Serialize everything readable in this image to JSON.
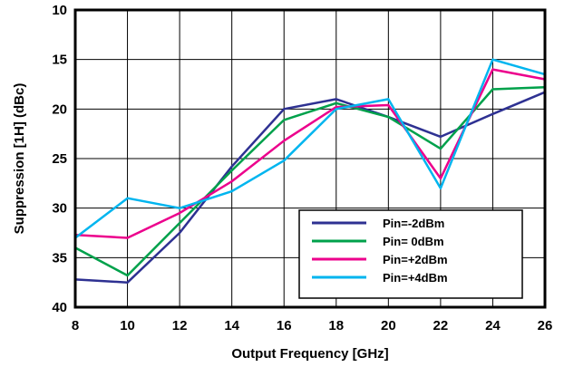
{
  "chart_data": {
    "type": "line",
    "title": "",
    "xlabel": "Output Frequency [GHz]",
    "ylabel": "Suppression [1H] (dBc)",
    "xlim": [
      8,
      26
    ],
    "ylim": [
      10,
      40
    ],
    "y_inverted": true,
    "grid": true,
    "legend_position": "bottom-right",
    "x_ticks": [
      "8",
      "10",
      "12",
      "14",
      "16",
      "18",
      "20",
      "22",
      "24",
      "26"
    ],
    "y_ticks": [
      "10",
      "15",
      "20",
      "25",
      "30",
      "35",
      "40"
    ],
    "x": [
      8,
      10,
      12,
      14,
      16,
      18,
      20,
      22,
      24,
      26
    ],
    "series": [
      {
        "name": "Pin=-2dBm",
        "color": "#2e3192",
        "values": [
          37.2,
          37.5,
          32.5,
          25.8,
          20.0,
          19.0,
          20.8,
          22.8,
          20.5,
          18.3
        ]
      },
      {
        "name": "Pin= 0dBm",
        "color": "#00a14b",
        "values": [
          34.0,
          36.8,
          31.5,
          26.2,
          21.1,
          19.4,
          20.8,
          24.0,
          18.0,
          17.8
        ]
      },
      {
        "name": "Pin=+2dBm",
        "color": "#ec008c",
        "values": [
          32.7,
          33.0,
          30.5,
          27.3,
          23.2,
          19.8,
          19.6,
          27.0,
          16.0,
          17.0
        ]
      },
      {
        "name": "Pin=+4dBm",
        "color": "#00b5ef",
        "values": [
          33.0,
          29.0,
          30.0,
          28.3,
          25.2,
          20.0,
          19.0,
          28.0,
          15.0,
          16.5
        ]
      }
    ]
  }
}
